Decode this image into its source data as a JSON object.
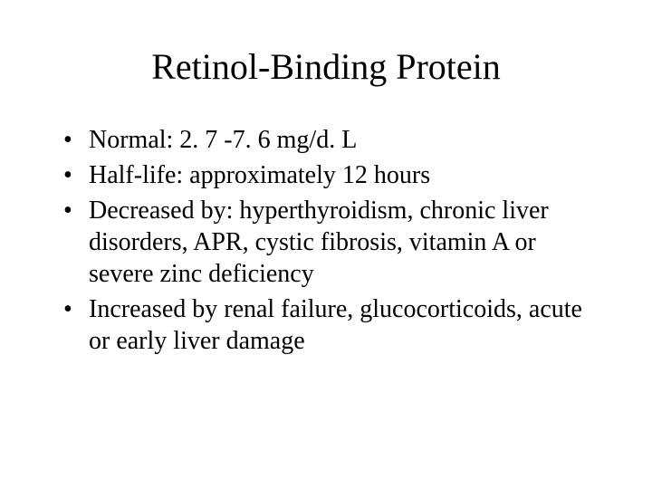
{
  "slide": {
    "title": "Retinol-Binding Protein",
    "bullets": [
      "Normal: 2. 7 -7. 6 mg/d. L",
      "Half-life: approximately 12 hours",
      "Decreased by: hyperthyroidism, chronic liver disorders, APR, cystic fibrosis, vitamin A or severe zinc deficiency",
      "Increased by renal failure, glucocorticoids, acute or early liver damage"
    ],
    "title_fontsize": 40,
    "body_fontsize": 28,
    "font_family": "Times New Roman",
    "background_color": "#ffffff",
    "text_color": "#000000"
  }
}
